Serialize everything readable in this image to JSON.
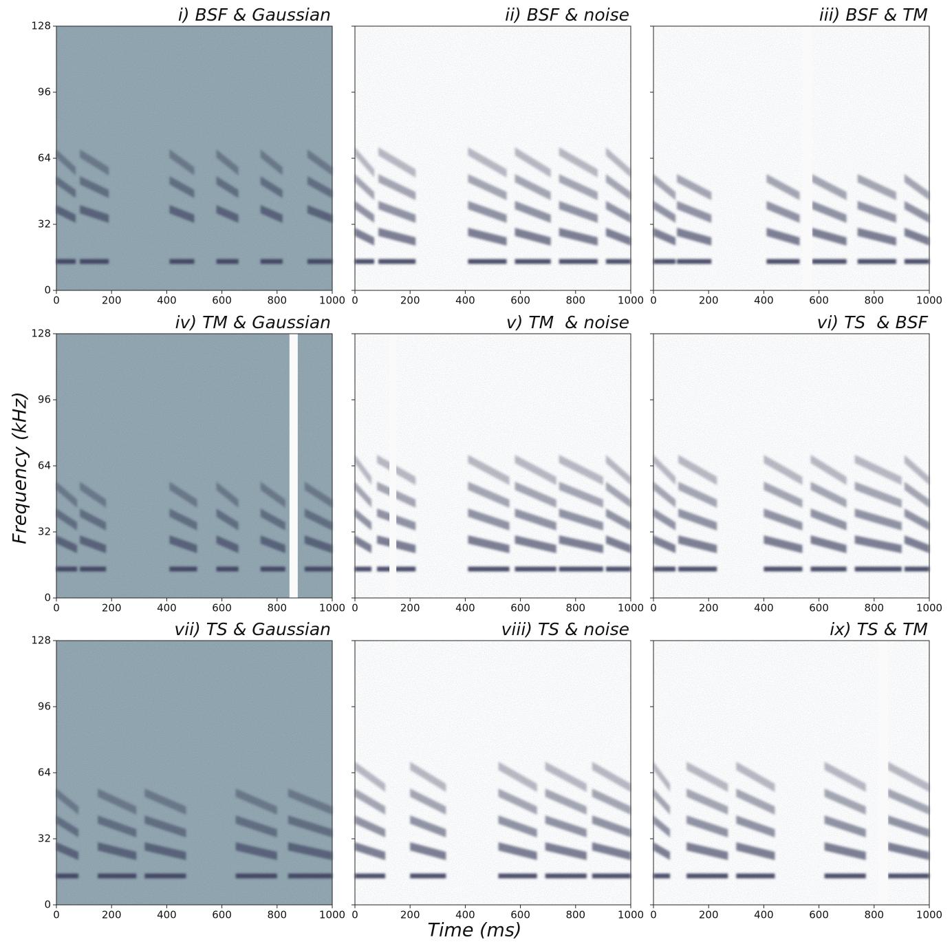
{
  "xlabel": "Time (ms)",
  "ylabel": "Frequency (kHz)",
  "color": "#3a3f5c",
  "chart_data": [
    {
      "type": "spectrogram",
      "title": "i) BSF & Gaussian",
      "background": "#93a9b1",
      "xlim": [
        0,
        1000
      ],
      "ylim": [
        0,
        128
      ],
      "xticks": [
        0,
        200,
        400,
        600,
        800,
        1000
      ],
      "yticks": [
        0,
        32,
        64,
        96,
        128
      ],
      "harmonics": [
        14,
        37,
        50,
        62
      ],
      "syllables": [
        [
          0,
          70
        ],
        [
          85,
          190
        ],
        [
          410,
          500
        ],
        [
          580,
          660
        ],
        [
          740,
          820
        ],
        [
          910,
          1000
        ]
      ],
      "masked": []
    },
    {
      "type": "spectrogram",
      "title": "ii) BSF & noise",
      "background": "#ffffff",
      "xlim": [
        0,
        1000
      ],
      "ylim": [
        0,
        128
      ],
      "xticks": [
        0,
        200,
        400,
        600,
        800,
        1000
      ],
      "yticks": [
        0,
        32,
        64,
        96,
        128
      ],
      "harmonics": [
        14,
        26,
        38,
        50,
        62
      ],
      "syllables": [
        [
          0,
          70
        ],
        [
          85,
          220
        ],
        [
          410,
          550
        ],
        [
          580,
          710
        ],
        [
          740,
          880
        ],
        [
          910,
          1000
        ]
      ],
      "masked": []
    },
    {
      "type": "spectrogram",
      "title": "iii) BSF & TM",
      "background": "#ffffff",
      "xlim": [
        0,
        1000
      ],
      "ylim": [
        0,
        128
      ],
      "xticks": [
        0,
        200,
        400,
        600,
        800,
        1000
      ],
      "yticks": [
        0,
        32,
        64,
        96,
        128
      ],
      "harmonics": [
        14,
        26,
        38,
        50
      ],
      "syllables": [
        [
          0,
          80
        ],
        [
          85,
          210
        ],
        [
          410,
          530
        ],
        [
          575,
          700
        ],
        [
          740,
          880
        ],
        [
          910,
          1000
        ]
      ],
      "masked": [
        [
          540,
          575
        ]
      ]
    },
    {
      "type": "spectrogram",
      "title": "iv) TM & Gaussian",
      "background": "#93a9b1",
      "xlim": [
        0,
        1000
      ],
      "ylim": [
        0,
        128
      ],
      "xticks": [
        0,
        200,
        400,
        600,
        800,
        1000
      ],
      "yticks": [
        0,
        32,
        64,
        96,
        128
      ],
      "harmonics": [
        14,
        26,
        38,
        50
      ],
      "syllables": [
        [
          0,
          75
        ],
        [
          85,
          180
        ],
        [
          410,
          510
        ],
        [
          580,
          660
        ],
        [
          740,
          830
        ],
        [
          900,
          1000
        ]
      ],
      "masked": [
        [
          845,
          875
        ]
      ]
    },
    {
      "type": "spectrogram",
      "title": "v) TM  & noise",
      "background": "#ffffff",
      "xlim": [
        0,
        1000
      ],
      "ylim": [
        0,
        128
      ],
      "xticks": [
        0,
        200,
        400,
        600,
        800,
        1000
      ],
      "yticks": [
        0,
        32,
        64,
        96,
        128
      ],
      "harmonics": [
        14,
        26,
        38,
        50,
        62
      ],
      "syllables": [
        [
          0,
          60
        ],
        [
          80,
          220
        ],
        [
          410,
          560
        ],
        [
          580,
          730
        ],
        [
          740,
          900
        ],
        [
          910,
          1000
        ]
      ],
      "masked": [
        [
          125,
          150
        ]
      ]
    },
    {
      "type": "spectrogram",
      "title": "vi) TS  & BSF",
      "background": "#ffffff",
      "xlim": [
        0,
        1000
      ],
      "ylim": [
        0,
        128
      ],
      "xticks": [
        0,
        200,
        400,
        600,
        800,
        1000
      ],
      "yticks": [
        0,
        32,
        64,
        96,
        128
      ],
      "harmonics": [
        14,
        26,
        38,
        50,
        62
      ],
      "syllables": [
        [
          0,
          80
        ],
        [
          90,
          230
        ],
        [
          400,
          540
        ],
        [
          570,
          700
        ],
        [
          730,
          900
        ],
        [
          910,
          1000
        ]
      ],
      "masked": []
    },
    {
      "type": "spectrogram",
      "title": "vii) TS & Gaussian",
      "background": "#93a9b1",
      "xlim": [
        0,
        1000
      ],
      "ylim": [
        0,
        128
      ],
      "xticks": [
        0,
        200,
        400,
        600,
        800,
        1000
      ],
      "yticks": [
        0,
        32,
        64,
        96,
        128
      ],
      "harmonics": [
        14,
        26,
        38,
        50
      ],
      "syllables": [
        [
          0,
          80
        ],
        [
          150,
          290
        ],
        [
          320,
          470
        ],
        [
          650,
          800
        ],
        [
          840,
          1000
        ]
      ],
      "masked": []
    },
    {
      "type": "spectrogram",
      "title": "viii) TS & noise",
      "background": "#ffffff",
      "xlim": [
        0,
        1000
      ],
      "ylim": [
        0,
        128
      ],
      "xticks": [
        0,
        200,
        400,
        600,
        800,
        1000
      ],
      "yticks": [
        0,
        32,
        64,
        96,
        128
      ],
      "harmonics": [
        14,
        26,
        38,
        50,
        62
      ],
      "syllables": [
        [
          0,
          110
        ],
        [
          200,
          330
        ],
        [
          520,
          660
        ],
        [
          690,
          840
        ],
        [
          860,
          1000
        ]
      ],
      "masked": []
    },
    {
      "type": "spectrogram",
      "title": "ix) TS & TM",
      "background": "#ffffff",
      "xlim": [
        0,
        1000
      ],
      "ylim": [
        0,
        128
      ],
      "xticks": [
        0,
        200,
        400,
        600,
        800,
        1000
      ],
      "yticks": [
        0,
        32,
        64,
        96,
        128
      ],
      "harmonics": [
        14,
        26,
        38,
        50,
        62
      ],
      "syllables": [
        [
          0,
          60
        ],
        [
          120,
          270
        ],
        [
          300,
          440
        ],
        [
          620,
          770
        ],
        [
          850,
          1000
        ]
      ],
      "masked": [
        [
          815,
          850
        ]
      ]
    }
  ]
}
